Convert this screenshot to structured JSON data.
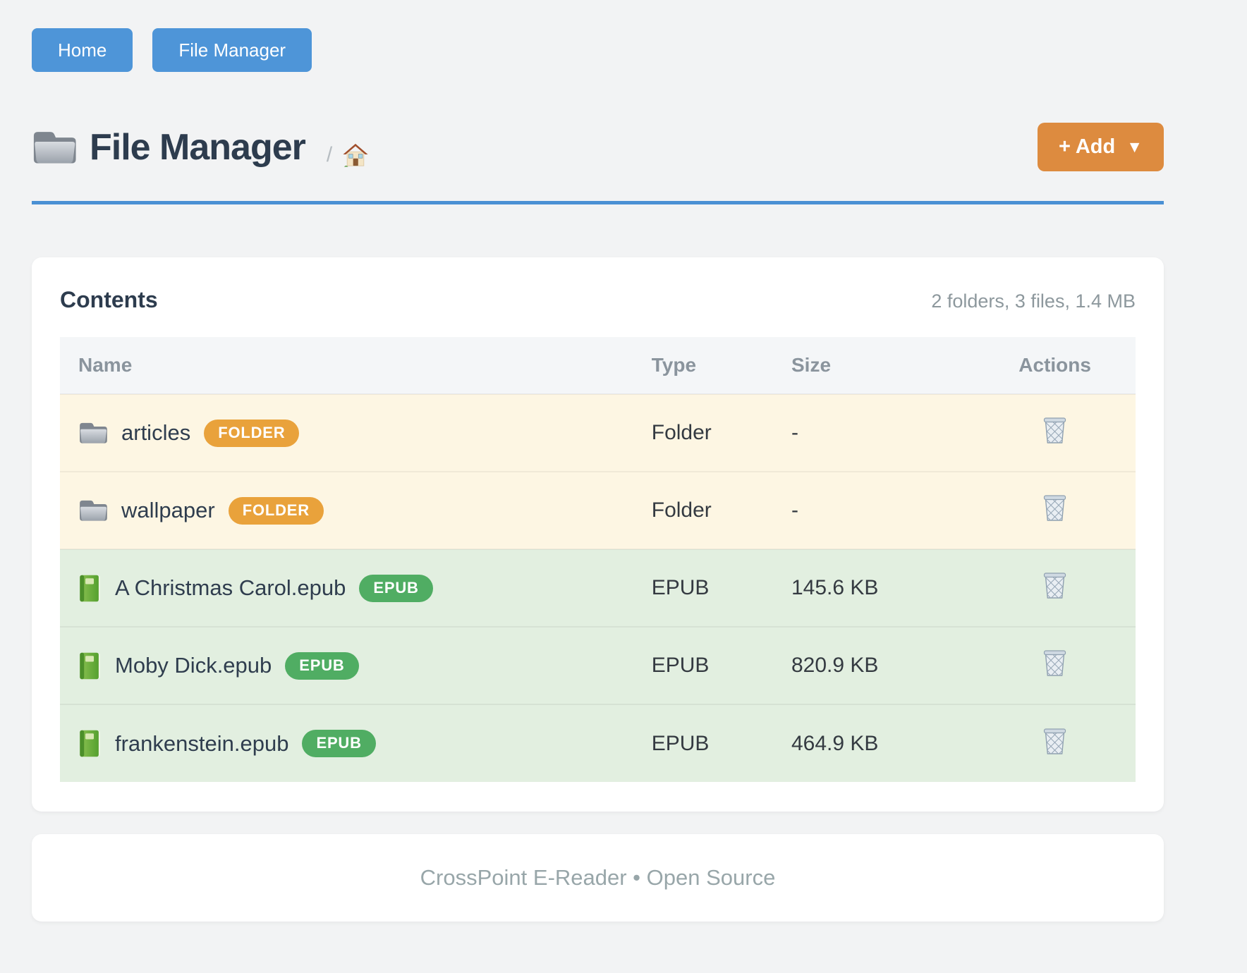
{
  "nav": {
    "buttons": [
      {
        "label": "Home"
      },
      {
        "label": "File Manager"
      }
    ]
  },
  "header": {
    "title_icon": "folder-icon",
    "title": "File Manager",
    "breadcrumb_separator": "/",
    "breadcrumb_home_icon": "house-icon",
    "add_button_label": "+ Add",
    "add_button_caret": "▼"
  },
  "contents": {
    "heading": "Contents",
    "summary": "2 folders, 3 files, 1.4 MB",
    "columns": [
      "Name",
      "Type",
      "Size",
      "Actions"
    ],
    "action_icon": "wastebasket-icon",
    "rows": [
      {
        "name": "articles",
        "kind": "folder",
        "icon": "folder-icon",
        "badge": "FOLDER",
        "type": "Folder",
        "size": "-"
      },
      {
        "name": "wallpaper",
        "kind": "folder",
        "icon": "folder-icon",
        "badge": "FOLDER",
        "type": "Folder",
        "size": "-"
      },
      {
        "name": "A Christmas Carol.epub",
        "kind": "epub",
        "icon": "book-icon",
        "badge": "EPUB",
        "type": "EPUB",
        "size": "145.6 KB"
      },
      {
        "name": "Moby Dick.epub",
        "kind": "epub",
        "icon": "book-icon",
        "badge": "EPUB",
        "type": "EPUB",
        "size": "820.9 KB"
      },
      {
        "name": "frankenstein.epub",
        "kind": "epub",
        "icon": "book-icon",
        "badge": "EPUB",
        "type": "EPUB",
        "size": "464.9 KB"
      }
    ]
  },
  "footer": {
    "text": "CrossPoint E-Reader • Open Source"
  },
  "colors": {
    "page_bg": "#f2f3f4",
    "nav_button": "#4e95d8",
    "add_button": "#dd8b3f",
    "accent_rule": "#4a90d4",
    "folder_row_bg": "#fdf6e3",
    "epub_row_bg": "#e2efe0",
    "folder_badge": "#e9a23b",
    "epub_badge": "#50ad63",
    "heading_text": "#2d3c4e",
    "thead_text": "#8a949d",
    "footer_text": "#98a6a9"
  }
}
